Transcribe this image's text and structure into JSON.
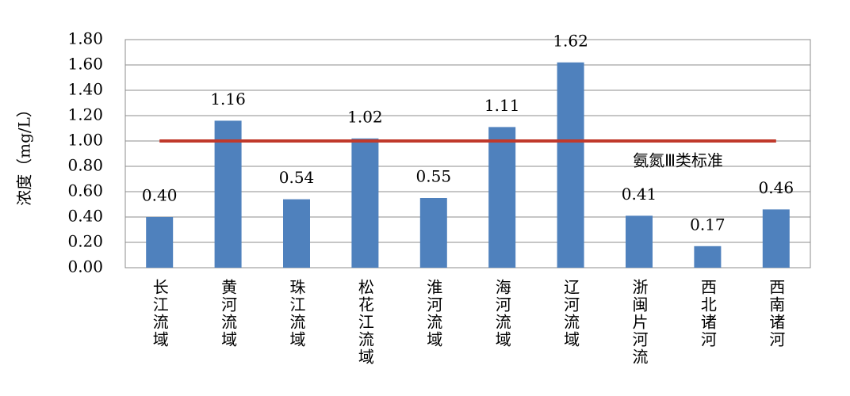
{
  "chart_data": {
    "type": "bar",
    "y_label": "浓度（mg/L）",
    "categories": [
      "长江流域",
      "黄河流域",
      "珠江流域",
      "松花江流域",
      "淮河流域",
      "海河流域",
      "辽河流域",
      "浙闽片河流",
      "西北诸河",
      "西南诸河"
    ],
    "values": [
      0.4,
      1.16,
      0.54,
      1.02,
      0.55,
      1.11,
      1.62,
      0.41,
      0.17,
      0.46
    ],
    "value_labels": [
      "0.40",
      "1.16",
      "0.54",
      "1.02",
      "0.55",
      "1.11",
      "1.62",
      "0.41",
      "0.17",
      "0.46"
    ],
    "color": "#4f81bd",
    "ylim": [
      0,
      1.8
    ],
    "yticks": [
      {
        "value": 0,
        "label": "0.00"
      },
      {
        "value": 0.2,
        "label": "0.20"
      },
      {
        "value": 0.4,
        "label": "0.40"
      },
      {
        "value": 0.6,
        "label": "0.60"
      },
      {
        "value": 0.8,
        "label": "0.80"
      },
      {
        "value": 1,
        "label": "1.00"
      },
      {
        "value": 1.2,
        "label": "1.20"
      },
      {
        "value": 1.4,
        "label": "1.40"
      },
      {
        "value": 1.6,
        "label": "1.60"
      },
      {
        "value": 1.8,
        "label": "1.80"
      }
    ],
    "grid": true,
    "reference_line": {
      "value": 1,
      "label": "氨氮Ⅲ类标准",
      "color": "#c0392b"
    }
  }
}
